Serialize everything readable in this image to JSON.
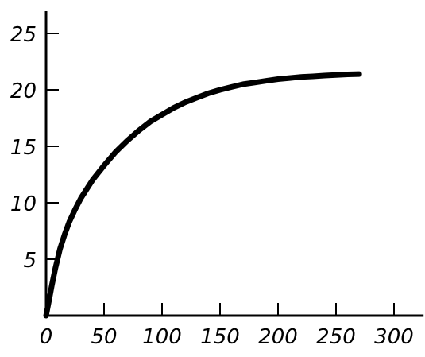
{
  "chart_data": {
    "type": "line",
    "title": "",
    "xlabel": "",
    "ylabel": "",
    "xlim": [
      0,
      320
    ],
    "ylim": [
      0,
      27
    ],
    "x_ticks": [
      0,
      50,
      100,
      150,
      200,
      250,
      300
    ],
    "x_tick_labels": [
      "0",
      "50",
      "100",
      "150",
      "200",
      "250",
      "300"
    ],
    "y_ticks": [
      5,
      10,
      15,
      20,
      25
    ],
    "y_tick_labels": [
      "5",
      "10",
      "15",
      "20",
      "25"
    ],
    "grid": false,
    "legend": "none",
    "series": [
      {
        "color": "#000000",
        "x": [
          0,
          3,
          5,
          8,
          12,
          16,
          20,
          25,
          30,
          40,
          50,
          60,
          70,
          80,
          90,
          100,
          110,
          120,
          130,
          140,
          150,
          160,
          170,
          180,
          190,
          200,
          210,
          220,
          230,
          240,
          250,
          260,
          270
        ],
        "y": [
          0,
          1.6,
          2.7,
          4.2,
          5.9,
          7.2,
          8.3,
          9.4,
          10.4,
          12.0,
          13.3,
          14.5,
          15.5,
          16.4,
          17.2,
          17.8,
          18.4,
          18.9,
          19.3,
          19.7,
          20.0,
          20.25,
          20.5,
          20.65,
          20.8,
          20.95,
          21.05,
          21.15,
          21.2,
          21.27,
          21.32,
          21.37,
          21.4
        ]
      }
    ]
  }
}
